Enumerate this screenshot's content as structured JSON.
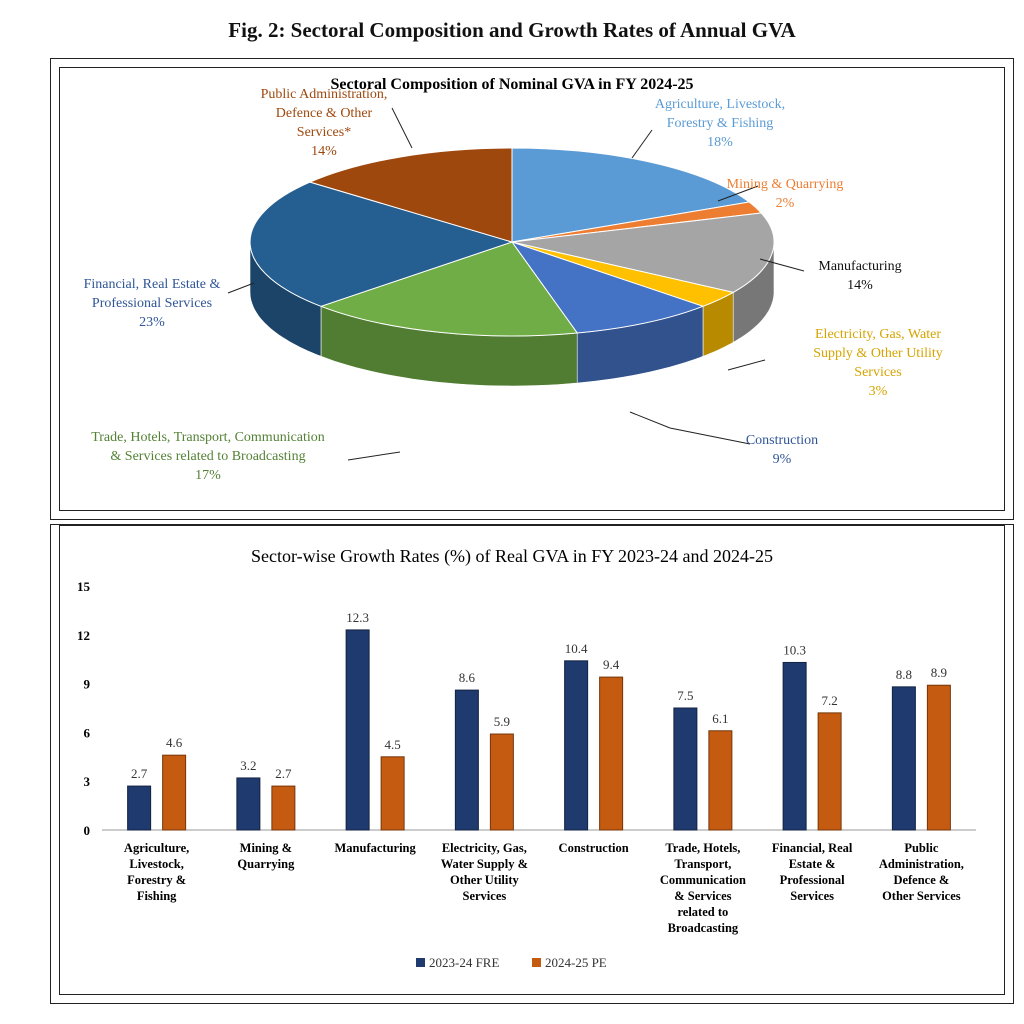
{
  "figure_title": "Fig. 2: Sectoral Composition and Growth Rates of Annual GVA",
  "chart_data": [
    {
      "type": "pie",
      "title": "Sectoral Composition of Nominal GVA in FY 2024-25",
      "slices": [
        {
          "label_lines": [
            "Agriculture, Livestock,",
            "Forestry & Fishing"
          ],
          "value_label": "18%",
          "value": 18,
          "color": "#5b9bd5"
        },
        {
          "label_lines": [
            "Mining & Quarrying"
          ],
          "value_label": "2%",
          "value": 2,
          "color": "#ed7d31"
        },
        {
          "label_lines": [
            "Manufacturing"
          ],
          "value_label": "14%",
          "value": 14,
          "color": "#a5a5a5"
        },
        {
          "label_lines": [
            "Electricity, Gas, Water",
            "Supply & Other Utility",
            "Services"
          ],
          "value_label": "3%",
          "value": 3,
          "color": "#ffc000"
        },
        {
          "label_lines": [
            "Construction"
          ],
          "value_label": "9%",
          "value": 9,
          "color": "#4472c4"
        },
        {
          "label_lines": [
            "Trade, Hotels, Transport, Communication",
            "& Services related to Broadcasting"
          ],
          "value_label": "17%",
          "value": 17,
          "color": "#70ad47"
        },
        {
          "label_lines": [
            "Financial, Real Estate &",
            "Professional Services"
          ],
          "value_label": "23%",
          "value": 23,
          "color": "#255e91"
        },
        {
          "label_lines": [
            "Public Administration,",
            "Defence & Other",
            "Services*"
          ],
          "value_label": "14%",
          "value": 14,
          "color": "#9e480e"
        }
      ]
    },
    {
      "type": "bar",
      "title": "Sector-wise Growth Rates (%) of Real GVA in FY 2023-24 and 2024-25",
      "categories": [
        [
          "Agriculture,",
          "Livestock,",
          "Forestry &",
          "Fishing"
        ],
        [
          "Mining &",
          "Quarrying"
        ],
        [
          "Manufacturing"
        ],
        [
          "Electricity, Gas,",
          "Water Supply &",
          "Other Utility",
          "Services"
        ],
        [
          "Construction"
        ],
        [
          "Trade, Hotels,",
          "Transport,",
          "Communication",
          "& Services",
          "related to",
          "Broadcasting"
        ],
        [
          "Financial, Real",
          "Estate &",
          "Professional",
          "Services"
        ],
        [
          "Public",
          "Administration,",
          "Defence &",
          "Other Services"
        ]
      ],
      "series": [
        {
          "name": "2023-24 FRE",
          "color": "#1f3a6e",
          "values": [
            2.7,
            3.2,
            12.3,
            8.6,
            10.4,
            7.5,
            10.3,
            8.8
          ]
        },
        {
          "name": "2024-25 PE",
          "color": "#c55a11",
          "values": [
            4.6,
            2.7,
            4.5,
            5.9,
            9.4,
            6.1,
            7.2,
            8.9
          ]
        }
      ],
      "ylim": [
        0,
        15
      ],
      "yticks": [
        0,
        3,
        6,
        9,
        12,
        15
      ],
      "legend": "bottom",
      "grid": false
    }
  ]
}
